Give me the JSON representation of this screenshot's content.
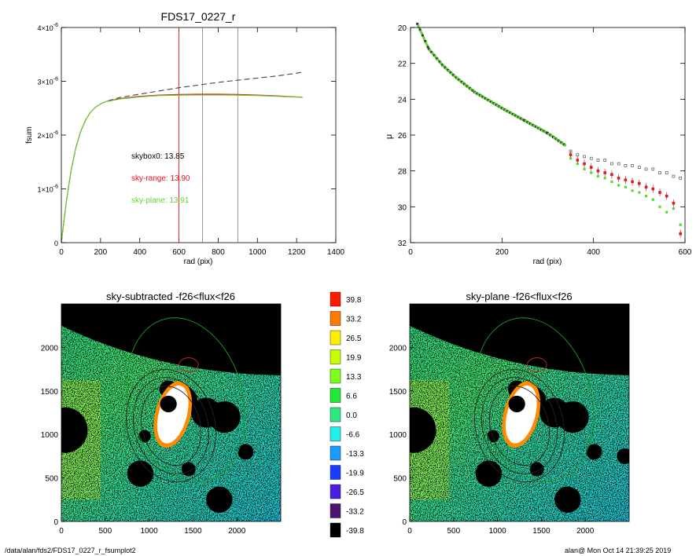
{
  "colors": {
    "skybox0": "#000000",
    "sky_range": "#e8141a",
    "sky_plane": "#5bd630",
    "dashed_model": "#444444",
    "marker_red": "#d42020",
    "marker_gray": "#8a8a8a",
    "sky_mask": "#000000",
    "aperture_green": "#1f9a2a",
    "aperture_dark": "#222222",
    "aperture_red": "#cc2222"
  },
  "footer": {
    "path": "/data/alan/fds2/FDS17_0227_r_fsumplot2",
    "stamp": "alan@  Mon Oct 14 21:39:25 2019"
  },
  "chart_data": [
    {
      "type": "line",
      "title": "FDS17_0227_r",
      "xlabel": "rad (pix)",
      "ylabel": "fsum",
      "xlim": [
        0,
        1400
      ],
      "ylim": [
        0,
        4e-06
      ],
      "xticks": [
        "0",
        "200",
        "400",
        "600",
        "800",
        "1000",
        "1200",
        "1400"
      ],
      "yticks": [
        {
          "mantissa": "0",
          "exponent": ""
        },
        {
          "mantissa": "1×10",
          "exponent": "-6"
        },
        {
          "mantissa": "2×10",
          "exponent": "-6"
        },
        {
          "mantissa": "3×10",
          "exponent": "-6"
        },
        {
          "mantissa": "4×10",
          "exponent": "-6"
        }
      ],
      "vlines": [
        {
          "x": 600,
          "color": "red"
        },
        {
          "x": 720,
          "color": "gray"
        },
        {
          "x": 900,
          "color": "gray"
        }
      ],
      "annotations": [
        {
          "text": "skybox0: 13.85",
          "color": "black"
        },
        {
          "text": "sky-range: 13.90",
          "color": "red"
        },
        {
          "text": "sky-plane: 13.91",
          "color": "green"
        }
      ],
      "x": [
        0,
        25,
        50,
        75,
        100,
        125,
        150,
        175,
        200,
        225,
        250,
        300,
        400,
        500,
        600,
        700,
        800,
        900,
        1000,
        1100,
        1200,
        1230
      ],
      "series": [
        {
          "name": "skybox0",
          "style": "dashed",
          "values": [
            0,
            7.5e-07,
            1.35e-06,
            1.78e-06,
            2.08e-06,
            2.29e-06,
            2.43e-06,
            2.52e-06,
            2.58e-06,
            2.62e-06,
            2.65e-06,
            2.7e-06,
            2.76e-06,
            2.82e-06,
            2.88e-06,
            2.93e-06,
            2.98e-06,
            3.02e-06,
            3.06e-06,
            3.1e-06,
            3.15e-06,
            3.17e-06
          ]
        },
        {
          "name": "sky-range",
          "values": [
            0,
            7.5e-07,
            1.35e-06,
            1.78e-06,
            2.08e-06,
            2.29e-06,
            2.43e-06,
            2.52e-06,
            2.58e-06,
            2.62e-06,
            2.64e-06,
            2.68e-06,
            2.72e-06,
            2.745e-06,
            2.755e-06,
            2.76e-06,
            2.76e-06,
            2.755e-06,
            2.745e-06,
            2.73e-06,
            2.71e-06,
            2.705e-06
          ]
        },
        {
          "name": "sky-plane",
          "values": [
            0,
            7.5e-07,
            1.35e-06,
            1.78e-06,
            2.08e-06,
            2.29e-06,
            2.43e-06,
            2.52e-06,
            2.58e-06,
            2.62e-06,
            2.635e-06,
            2.67e-06,
            2.71e-06,
            2.735e-06,
            2.74e-06,
            2.745e-06,
            2.745e-06,
            2.74e-06,
            2.735e-06,
            2.72e-06,
            2.705e-06,
            2.7e-06
          ]
        }
      ]
    },
    {
      "type": "scatter",
      "title": "",
      "xlabel": "rad (pix)",
      "ylabel": "μ",
      "xlim": [
        0,
        600
      ],
      "ylim": [
        32,
        20
      ],
      "xticks": [
        "0",
        "200",
        "400",
        "600"
      ],
      "yticks": [
        "20",
        "22",
        "24",
        "26",
        "28",
        "30",
        "32"
      ],
      "profile": [
        [
          15,
          19.8
        ],
        [
          40,
          21.2
        ],
        [
          70,
          22.1
        ],
        [
          100,
          22.8
        ],
        [
          140,
          23.6
        ],
        [
          200,
          24.5
        ],
        [
          250,
          25.2
        ],
        [
          300,
          25.9
        ],
        [
          340,
          26.6
        ]
      ],
      "series": [
        {
          "name": "skybox0",
          "marker": "open-square",
          "points": [
            [
              350,
              26.9
            ],
            [
              365,
              27.1
            ],
            [
              380,
              27.2
            ],
            [
              395,
              27.3
            ],
            [
              410,
              27.4
            ],
            [
              425,
              27.4
            ],
            [
              440,
              27.6
            ],
            [
              455,
              27.6
            ],
            [
              470,
              27.7
            ],
            [
              485,
              27.7
            ],
            [
              500,
              27.8
            ],
            [
              515,
              27.9
            ],
            [
              530,
              27.9
            ],
            [
              545,
              28.1
            ],
            [
              560,
              28.1
            ],
            [
              575,
              28.3
            ],
            [
              590,
              28.4
            ]
          ]
        },
        {
          "name": "sky-range",
          "marker": "filled-square",
          "points": [
            [
              350,
              27.1
            ],
            [
              365,
              27.4
            ],
            [
              380,
              27.6
            ],
            [
              395,
              27.8
            ],
            [
              410,
              28.0
            ],
            [
              425,
              28.1
            ],
            [
              440,
              28.2
            ],
            [
              455,
              28.4
            ],
            [
              470,
              28.5
            ],
            [
              485,
              28.6
            ],
            [
              500,
              28.7
            ],
            [
              515,
              28.9
            ],
            [
              530,
              29.0
            ],
            [
              545,
              29.2
            ],
            [
              560,
              29.4
            ],
            [
              575,
              29.8
            ],
            [
              590,
              31.5
            ]
          ]
        },
        {
          "name": "sky-plane",
          "marker": "filled-square",
          "points": [
            [
              350,
              27.3
            ],
            [
              365,
              27.6
            ],
            [
              380,
              27.9
            ],
            [
              395,
              28.1
            ],
            [
              410,
              28.3
            ],
            [
              425,
              28.4
            ],
            [
              440,
              28.6
            ],
            [
              455,
              28.8
            ],
            [
              470,
              28.9
            ],
            [
              485,
              29.1
            ],
            [
              500,
              29.2
            ],
            [
              515,
              29.4
            ],
            [
              530,
              29.6
            ],
            [
              545,
              30.0
            ],
            [
              560,
              30.3
            ],
            [
              575,
              30.1
            ],
            [
              590,
              31.0
            ]
          ]
        }
      ]
    },
    {
      "type": "heatmap",
      "title": "sky-subtracted -f26<flux<f26",
      "xlim": [
        0,
        2500
      ],
      "ylim": [
        0,
        2500
      ],
      "xticks": [
        "0",
        "500",
        "1000",
        "1500",
        "2000"
      ],
      "yticks": [
        "0",
        "500",
        "1000",
        "1500",
        "2000"
      ],
      "masks": [
        [
          40,
          1050,
          260
        ],
        [
          1400,
          1400,
          150
        ],
        [
          1650,
          1250,
          170
        ],
        [
          1860,
          1200,
          180
        ],
        [
          900,
          550,
          150
        ],
        [
          1800,
          250,
          150
        ],
        [
          1150,
          1050,
          80
        ],
        [
          1220,
          1520,
          100
        ],
        [
          950,
          980,
          70
        ],
        [
          2100,
          800,
          90
        ],
        [
          1450,
          600,
          80
        ],
        [
          1350,
          1100,
          60
        ]
      ],
      "contours": [
        {
          "cx": 1420,
          "cy": 1400,
          "rx": 650,
          "ry": 950,
          "rot": -15,
          "color": "green"
        },
        {
          "cx": 1250,
          "cy": 1100,
          "rx": 500,
          "ry": 650,
          "rot": -15,
          "color": "dark"
        },
        {
          "cx": 1250,
          "cy": 1100,
          "rx": 420,
          "ry": 560,
          "rot": -15,
          "color": "dark"
        },
        {
          "cx": 1250,
          "cy": 1100,
          "rx": 330,
          "ry": 460,
          "rot": -15,
          "color": "dark"
        },
        {
          "cx": 1450,
          "cy": 1800,
          "rx": 110,
          "ry": 80,
          "rot": 0,
          "color": "red"
        }
      ]
    },
    {
      "type": "heatmap",
      "title": "sky-plane -f26<flux<f26",
      "xlim": [
        0,
        2500
      ],
      "ylim": [
        0,
        2500
      ],
      "xticks": [
        "0",
        "500",
        "1000",
        "1500",
        "2000"
      ],
      "yticks": [
        "0",
        "500",
        "1000",
        "1500",
        "2000"
      ],
      "masks": [
        [
          40,
          1050,
          260
        ],
        [
          1400,
          1400,
          150
        ],
        [
          1650,
          1250,
          170
        ],
        [
          1860,
          1200,
          180
        ],
        [
          900,
          550,
          150
        ],
        [
          1800,
          250,
          150
        ],
        [
          1150,
          1050,
          80
        ],
        [
          1220,
          1520,
          100
        ],
        [
          950,
          980,
          70
        ],
        [
          2100,
          800,
          90
        ],
        [
          1450,
          600,
          80
        ],
        [
          1350,
          1100,
          60
        ]
      ],
      "contours": [
        {
          "cx": 1420,
          "cy": 1400,
          "rx": 650,
          "ry": 950,
          "rot": -15,
          "color": "green"
        },
        {
          "cx": 1250,
          "cy": 1100,
          "rx": 500,
          "ry": 650,
          "rot": -15,
          "color": "dark"
        },
        {
          "cx": 1250,
          "cy": 1100,
          "rx": 420,
          "ry": 560,
          "rot": -15,
          "color": "dark"
        },
        {
          "cx": 1250,
          "cy": 1100,
          "rx": 330,
          "ry": 460,
          "rot": -15,
          "color": "dark"
        },
        {
          "cx": 1450,
          "cy": 1800,
          "rx": 110,
          "ry": 80,
          "rot": 0,
          "color": "red"
        }
      ]
    },
    {
      "type": "colorbar",
      "labels": [
        "39.8",
        "33.2",
        "26.5",
        "19.9",
        "13.3",
        "6.6",
        "0.0",
        "-6.6",
        "-13.3",
        "-19.9",
        "-26.5",
        "-33.2",
        "-39.8"
      ],
      "colors": [
        "#ff1a00",
        "#ff7a00",
        "#ffee00",
        "#c8ff00",
        "#7cff1a",
        "#1fe838",
        "#2ce880",
        "#21f0e8",
        "#1a9cff",
        "#1a3cff",
        "#4b1fe0",
        "#4a1470",
        "#000000"
      ]
    }
  ]
}
